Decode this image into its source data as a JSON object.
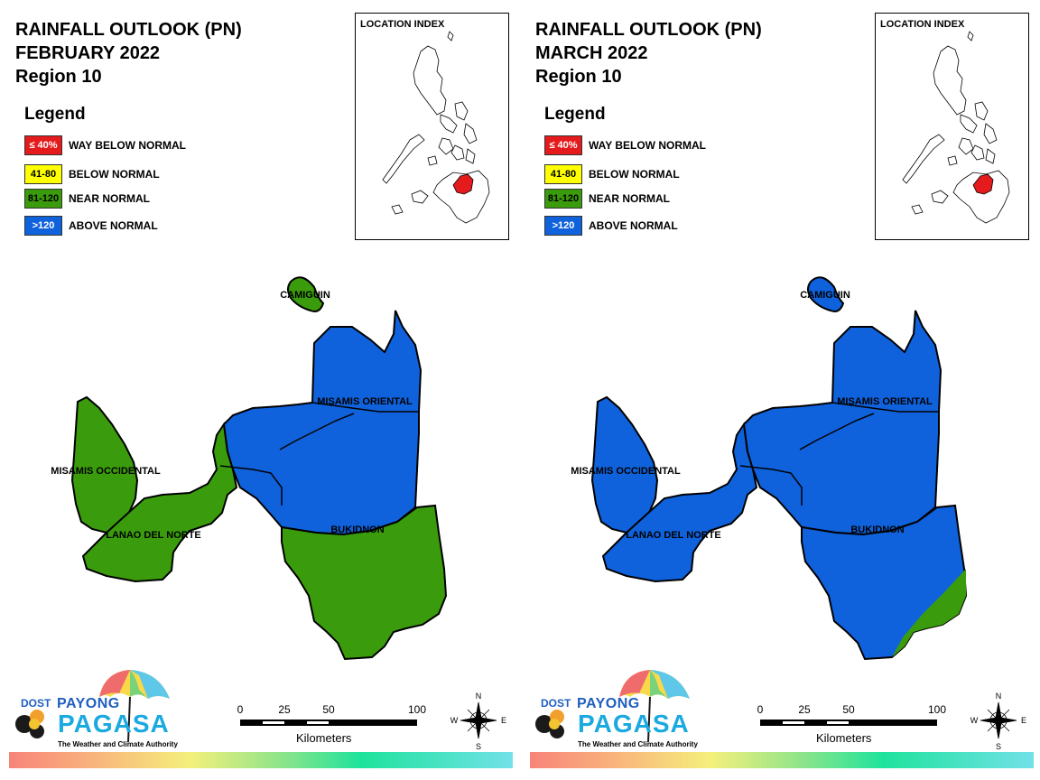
{
  "panels": [
    {
      "title_line1": "RAINFALL OUTLOOK (PN)",
      "title_line2": "FEBRUARY 2022",
      "title_line3": "Region 10",
      "region_colors": {
        "camiguin": "#3a9c0c",
        "misamis_oriental": "#0f62dc",
        "misamis_occidental": "#3a9c0c",
        "lanao_del_norte": "#3a9c0c",
        "bukidnon_north": "#0f62dc",
        "bukidnon_south": "#3a9c0c"
      }
    },
    {
      "title_line1": "RAINFALL OUTLOOK (PN)",
      "title_line2": "MARCH 2022",
      "title_line3": "Region 10",
      "region_colors": {
        "camiguin": "#0f62dc",
        "misamis_oriental": "#0f62dc",
        "misamis_occidental": "#0f62dc",
        "lanao_del_norte": "#0f62dc",
        "bukidnon_north": "#0f62dc",
        "bukidnon_south": "#0f62dc",
        "bukidnon_corner": "#3a9c0c"
      }
    }
  ],
  "legend": {
    "title": "Legend",
    "items": [
      {
        "code": "≤ 40%",
        "label": "WAY BELOW NORMAL",
        "color": "#e41a1c",
        "text_color": "#ffffff"
      },
      {
        "code": "41-80",
        "label": "BELOW NORMAL",
        "color": "#ffff00",
        "text_color": "#000000"
      },
      {
        "code": "81-120",
        "label": "NEAR NORMAL",
        "color": "#3a9c0c",
        "text_color": "#000000"
      },
      {
        "code": ">120",
        "label": "ABOVE NORMAL",
        "color": "#0f62dc",
        "text_color": "#ffffff"
      }
    ]
  },
  "location_index": {
    "title": "LOCATION INDEX",
    "highlight_color": "#e41a1c"
  },
  "map_labels": {
    "camiguin": "CAMIGUIN",
    "misamis_oriental": "MISAMIS ORIENTAL",
    "misamis_occidental": "MISAMIS OCCIDENTAL",
    "lanao_del_norte": "LANAO DEL NORTE",
    "bukidnon": "BUKIDNON"
  },
  "logo": {
    "dost": "DOST",
    "payong": "PAYONG",
    "pagasa": "PAGASA",
    "tagline": "The Weather and Climate Authority"
  },
  "scale_bar": {
    "ticks": [
      "0",
      "25",
      "50",
      "100"
    ],
    "unit": "Kilometers"
  },
  "compass": {
    "n": "N",
    "e": "E",
    "s": "S",
    "w": "W"
  }
}
